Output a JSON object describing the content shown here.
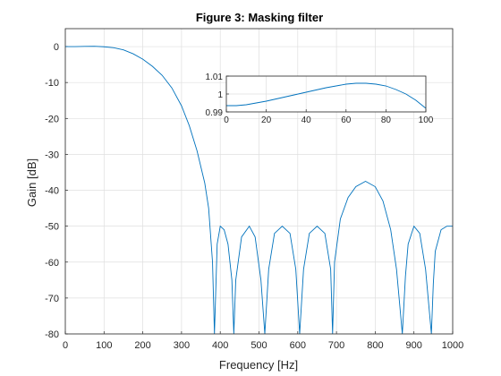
{
  "chart_data": [
    {
      "type": "line",
      "title": "Figure 3: Masking filter",
      "xlabel": "Frequency [Hz]",
      "ylabel": "Gain [dB]",
      "xlim": [
        0,
        1000
      ],
      "ylim": [
        -80,
        5
      ],
      "xticks": [
        "0",
        "100",
        "200",
        "300",
        "400",
        "500",
        "600",
        "700",
        "800",
        "900",
        "1000"
      ],
      "yticks": [
        "0",
        "-10",
        "-20",
        "-30",
        "-40",
        "-50",
        "-60",
        "-70",
        "-80"
      ],
      "grid": true,
      "line_color": "#0072bd",
      "series": [
        {
          "x": [
            0,
            25,
            50,
            75,
            100,
            125,
            150,
            175,
            200,
            225,
            250,
            275,
            300,
            320,
            340,
            360,
            370,
            380,
            385,
            392,
            400,
            410,
            420,
            430,
            435,
            440,
            455,
            475,
            490,
            505,
            515,
            525,
            540,
            560,
            580,
            595,
            605,
            615,
            630,
            650,
            670,
            685,
            690,
            695,
            710,
            730,
            750,
            775,
            800,
            820,
            840,
            855,
            870,
            878,
            885,
            900,
            915,
            930,
            945,
            950,
            955,
            970,
            985,
            1000
          ],
          "y": [
            0,
            0,
            0.05,
            0.1,
            -0.05,
            -0.3,
            -0.9,
            -2,
            -3.5,
            -5.5,
            -8,
            -11.5,
            -16.5,
            -22,
            -29,
            -38,
            -45,
            -60,
            -80,
            -55,
            -50,
            -51,
            -55,
            -65,
            -80,
            -65,
            -53,
            -50,
            -53,
            -65,
            -80,
            -62,
            -52,
            -50,
            -52,
            -62,
            -80,
            -62,
            -52,
            -50,
            -52,
            -62,
            -80,
            -60,
            -48,
            -42,
            -39,
            -37.5,
            -39,
            -43,
            -51,
            -62,
            -80,
            -64,
            -55,
            -50,
            -52,
            -62,
            -80,
            -66,
            -57,
            -51,
            -50,
            -50
          ]
        }
      ]
    },
    {
      "type": "line",
      "title": "",
      "xlim": [
        0,
        100
      ],
      "ylim": [
        0.99,
        1.01
      ],
      "xticks": [
        "0",
        "20",
        "40",
        "60",
        "80",
        "100"
      ],
      "yticks": [
        "1.01",
        "1",
        "0.99"
      ],
      "grid": true,
      "line_color": "#0072bd",
      "series": [
        {
          "x": [
            0,
            5,
            10,
            20,
            30,
            40,
            50,
            60,
            65,
            70,
            75,
            80,
            85,
            90,
            95,
            100
          ],
          "y": [
            0.9935,
            0.9935,
            0.994,
            0.996,
            0.9985,
            1.001,
            1.0035,
            1.0055,
            1.006,
            1.006,
            1.0055,
            1.0045,
            1.0025,
            1.0,
            0.9965,
            0.992
          ]
        }
      ]
    }
  ]
}
